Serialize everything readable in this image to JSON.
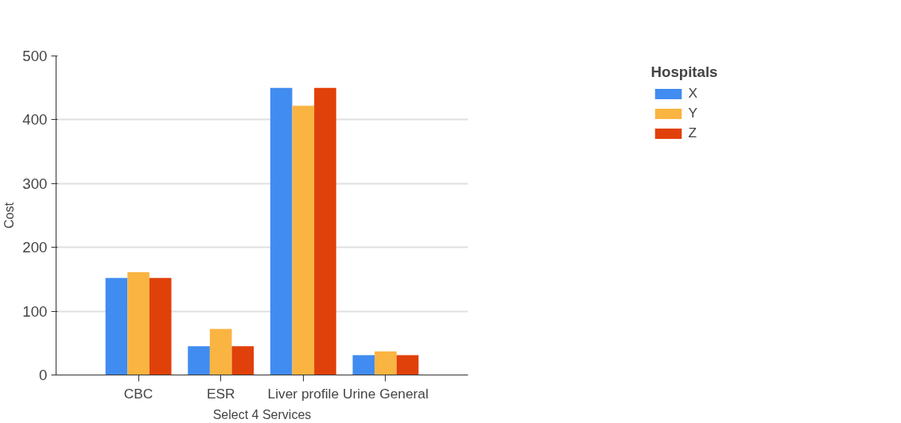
{
  "chart_data": {
    "type": "bar",
    "xlabel": "Select 4 Services",
    "ylabel": "Cost",
    "legend_title": "Hospitals",
    "categories": [
      "CBC",
      "ESR",
      "Liver profile",
      "Urine General"
    ],
    "series": [
      {
        "name": "X",
        "color": "#418cf0",
        "values": [
          152,
          45,
          450,
          31
        ]
      },
      {
        "name": "Y",
        "color": "#fab441",
        "values": [
          161,
          72,
          422,
          37
        ]
      },
      {
        "name": "Z",
        "color": "#e0400a",
        "values": [
          152,
          45,
          450,
          31
        ]
      }
    ],
    "ylim": [
      0,
      500
    ],
    "yticks": [
      0,
      100,
      200,
      300,
      400,
      500
    ],
    "grid": "y",
    "legend": "top right"
  }
}
